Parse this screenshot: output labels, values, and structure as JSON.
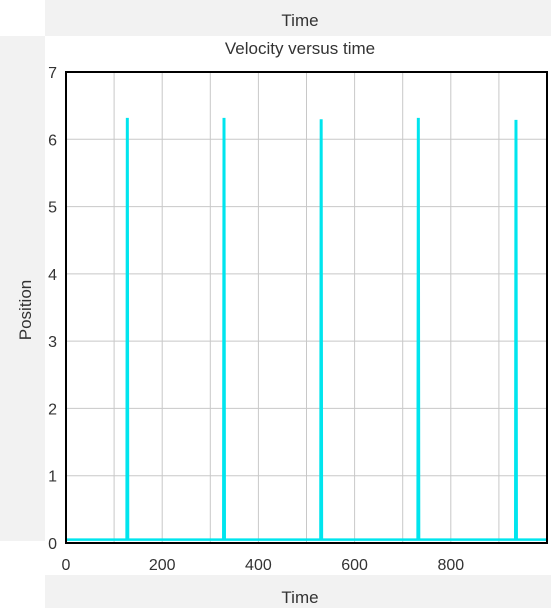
{
  "top_label": "Time",
  "chart_data": {
    "type": "line",
    "title": "Velocity versus time",
    "xlabel": "Time",
    "ylabel": "Position",
    "xlim": [
      0,
      1000
    ],
    "ylim": [
      0,
      7
    ],
    "xticks": [
      0,
      200,
      400,
      600,
      800
    ],
    "yticks": [
      0,
      1,
      2,
      3,
      4,
      5,
      6,
      7
    ],
    "grid": true,
    "series": [
      {
        "color": "#00e5ee",
        "x": [
          0,
          126,
          127,
          128,
          129,
          327,
          328,
          329,
          330,
          529,
          530,
          531,
          532,
          731,
          732,
          733,
          734,
          934,
          935,
          936,
          937,
          1000
        ],
        "y": [
          0.05,
          0.05,
          6.3,
          6.3,
          0.05,
          0.05,
          6.3,
          6.3,
          0.05,
          0.05,
          6.28,
          6.28,
          0.05,
          0.05,
          6.3,
          6.3,
          0.05,
          0.05,
          6.27,
          6.27,
          0.05,
          0.05
        ]
      }
    ]
  }
}
